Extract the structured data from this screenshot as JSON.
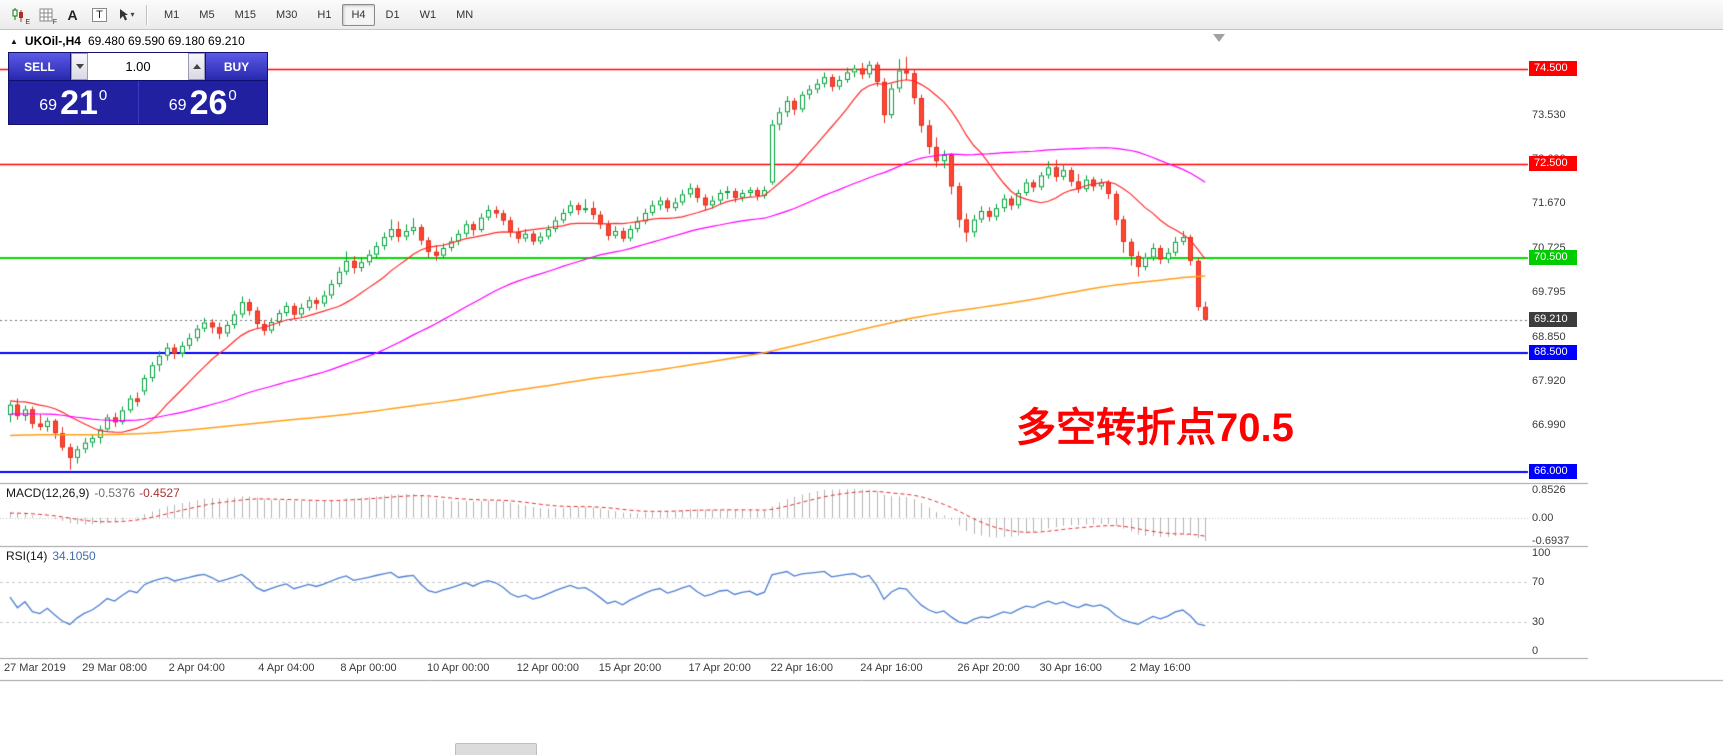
{
  "toolbar": {
    "icons": [
      {
        "name": "candle-chart-e-icon",
        "type": "candles",
        "badge": "E"
      },
      {
        "name": "grid-f-icon",
        "type": "grid",
        "badge": "F"
      },
      {
        "name": "label-a-icon",
        "type": "letter",
        "glyph": "A"
      },
      {
        "name": "text-t-icon",
        "type": "boxed",
        "glyph": "T"
      },
      {
        "name": "cursor-dropdown-icon",
        "type": "cursor"
      }
    ],
    "timeframes": {
      "items": [
        "M1",
        "M5",
        "M15",
        "M30",
        "H1",
        "H4",
        "D1",
        "W1",
        "MN"
      ],
      "active": "H4"
    }
  },
  "chart": {
    "title": {
      "collapse_glyph": "▲",
      "symbol": "UKOil-,H4",
      "ohlc": "69.480 69.590 69.180 69.210"
    },
    "price_scale": {
      "labels": [
        {
          "value": 73.53,
          "text": "73.530"
        },
        {
          "value": 72.6,
          "text": "72.600"
        },
        {
          "value": 71.67,
          "text": "71.670"
        },
        {
          "value": 70.725,
          "text": "70.725"
        },
        {
          "value": 69.795,
          "text": "69.795"
        },
        {
          "value": 68.85,
          "text": "68.850"
        },
        {
          "value": 67.92,
          "text": "67.920"
        },
        {
          "value": 66.99,
          "text": "66.990"
        }
      ],
      "badges": [
        {
          "value": 74.5,
          "text": "74.500",
          "color": "#FF0000"
        },
        {
          "value": 72.5,
          "text": "72.500",
          "color": "#FF0000"
        },
        {
          "value": 70.5,
          "text": "70.500",
          "color": "#00CC00"
        },
        {
          "value": 69.21,
          "text": "69.210",
          "color": "#3C3C3C"
        },
        {
          "value": 68.5,
          "text": "68.500",
          "color": "#0000FF"
        },
        {
          "value": 66.0,
          "text": "66.000",
          "color": "#0000FF"
        }
      ]
    }
  },
  "trade_panel": {
    "sell_label": "SELL",
    "buy_label": "BUY",
    "volume": "1.00",
    "sell_price": {
      "big": "69",
      "pips": "21",
      "sup": "0"
    },
    "buy_price": {
      "big": "69",
      "pips": "26",
      "sup": "0"
    }
  },
  "annotation": {
    "text": "多空转折点70.5",
    "color": "#FF0000"
  },
  "indicators": {
    "macd": {
      "label": "MACD(12,26,9)",
      "value_main": "-0.5376",
      "value_signal": "-0.4527",
      "scale": [
        "0.8526",
        "0.00",
        "-0.6937"
      ]
    },
    "rsi": {
      "label": "RSI(14)",
      "value": "34.1050",
      "scale": [
        "100",
        "70",
        "30",
        "0"
      ]
    }
  },
  "chart_data": {
    "type": "candlestick",
    "symbol": "UKOil-",
    "timeframe": "H4",
    "y_range": [
      65.77,
      75.25
    ],
    "current_price": 69.21,
    "last_bar": {
      "open": 69.48,
      "high": 69.59,
      "low": 69.18,
      "close": 69.21
    },
    "colors": {
      "bull_border": "#00A33B",
      "bull_fill": "#FFFFFF",
      "bear_border": "#E03222",
      "bear_fill": "#FF4632"
    },
    "horizontal_lines": [
      {
        "price": 74.5,
        "color": "#FF0000",
        "width": 1.4
      },
      {
        "price": 72.5,
        "color": "#FF0000",
        "width": 1.4
      },
      {
        "price": 70.5,
        "color": "#00DC00",
        "width": 2
      },
      {
        "price": 68.5,
        "color": "#0000FF",
        "width": 2
      },
      {
        "price": 66.0,
        "color": "#0000FF",
        "width": 2
      }
    ],
    "moving_averages": [
      {
        "period": 13,
        "color": "#FF2A2A",
        "width": 1.2
      },
      {
        "period": 50,
        "color": "#FF00FF",
        "width": 1.2
      },
      {
        "period": 200,
        "color": "#FFA018",
        "width": 1.5
      }
    ],
    "indicators": {
      "macd": {
        "fast": 12,
        "slow": 26,
        "signal": 9,
        "main_value": -0.5376,
        "signal_value": -0.4527
      },
      "rsi": {
        "period": 14,
        "value": 34.105,
        "levels": [
          70,
          30
        ]
      }
    },
    "x_axis": {
      "labels": [
        {
          "bar": 0,
          "text": "27 Mar 2019"
        },
        {
          "bar": 14,
          "text": "29 Mar 08:00"
        },
        {
          "bar": 25,
          "text": "2 Apr 04:00"
        },
        {
          "bar": 37,
          "text": "4 Apr 04:00"
        },
        {
          "bar": 48,
          "text": "8 Apr 00:00"
        },
        {
          "bar": 60,
          "text": "10 Apr 00:00"
        },
        {
          "bar": 72,
          "text": "12 Apr 00:00"
        },
        {
          "bar": 83,
          "text": "15 Apr 20:00"
        },
        {
          "bar": 95,
          "text": "17 Apr 20:00"
        },
        {
          "bar": 106,
          "text": "22 Apr 16:00"
        },
        {
          "bar": 118,
          "text": "24 Apr 16:00"
        },
        {
          "bar": 131,
          "text": "26 Apr 20:00"
        },
        {
          "bar": 142,
          "text": "30 Apr 16:00"
        },
        {
          "bar": 154,
          "text": "2 May 16:00"
        }
      ]
    },
    "candles_ohlc": [
      [
        67.2,
        67.48,
        67.05,
        67.42
      ],
      [
        67.42,
        67.55,
        67.1,
        67.18
      ],
      [
        67.18,
        67.4,
        67.08,
        67.32
      ],
      [
        67.32,
        67.38,
        66.92,
        67.02
      ],
      [
        67.02,
        67.22,
        66.88,
        66.95
      ],
      [
        66.95,
        67.15,
        66.85,
        67.08
      ],
      [
        67.08,
        67.12,
        66.7,
        66.82
      ],
      [
        66.82,
        66.95,
        66.45,
        66.52
      ],
      [
        66.52,
        66.6,
        66.05,
        66.3
      ],
      [
        66.3,
        66.55,
        66.18,
        66.48
      ],
      [
        66.48,
        66.72,
        66.4,
        66.62
      ],
      [
        66.62,
        66.8,
        66.52,
        66.72
      ],
      [
        66.72,
        66.98,
        66.6,
        66.9
      ],
      [
        66.9,
        67.22,
        66.85,
        67.15
      ],
      [
        67.15,
        67.25,
        66.95,
        67.05
      ],
      [
        67.05,
        67.38,
        67.0,
        67.3
      ],
      [
        67.3,
        67.62,
        67.25,
        67.55
      ],
      [
        67.55,
        67.68,
        67.38,
        67.48
      ],
      [
        67.7,
        68.05,
        67.62,
        67.98
      ],
      [
        67.98,
        68.32,
        67.9,
        68.25
      ],
      [
        68.25,
        68.55,
        68.12,
        68.45
      ],
      [
        68.45,
        68.72,
        68.35,
        68.62
      ],
      [
        68.62,
        68.7,
        68.38,
        68.5
      ],
      [
        68.5,
        68.75,
        68.42,
        68.66
      ],
      [
        68.66,
        68.92,
        68.58,
        68.82
      ],
      [
        68.82,
        69.1,
        68.75,
        69.02
      ],
      [
        69.02,
        69.25,
        68.95,
        69.15
      ],
      [
        69.15,
        69.22,
        68.92,
        69.05
      ],
      [
        69.05,
        69.15,
        68.8,
        68.92
      ],
      [
        68.92,
        69.18,
        68.85,
        69.1
      ],
      [
        69.1,
        69.4,
        69.02,
        69.32
      ],
      [
        69.32,
        69.7,
        69.25,
        69.58
      ],
      [
        69.58,
        69.65,
        69.3,
        69.4
      ],
      [
        69.4,
        69.48,
        69.02,
        69.12
      ],
      [
        69.12,
        69.2,
        68.88,
        68.98
      ],
      [
        68.98,
        69.25,
        68.92,
        69.16
      ],
      [
        69.16,
        69.42,
        69.08,
        69.35
      ],
      [
        69.35,
        69.58,
        69.28,
        69.5
      ],
      [
        69.5,
        69.56,
        69.22,
        69.32
      ],
      [
        69.32,
        69.55,
        69.25,
        69.46
      ],
      [
        69.46,
        69.7,
        69.4,
        69.62
      ],
      [
        69.62,
        69.68,
        69.42,
        69.55
      ],
      [
        69.55,
        69.82,
        69.48,
        69.72
      ],
      [
        69.72,
        70.05,
        69.65,
        69.96
      ],
      [
        69.96,
        70.32,
        69.9,
        70.22
      ],
      [
        70.22,
        70.65,
        70.15,
        70.45
      ],
      [
        70.45,
        70.55,
        70.18,
        70.3
      ],
      [
        70.3,
        70.52,
        70.22,
        70.42
      ],
      [
        70.42,
        70.68,
        70.35,
        70.58
      ],
      [
        70.58,
        70.85,
        70.5,
        70.76
      ],
      [
        70.76,
        71.05,
        70.68,
        70.95
      ],
      [
        70.95,
        71.32,
        70.88,
        71.12
      ],
      [
        71.12,
        71.28,
        70.85,
        70.96
      ],
      [
        70.96,
        71.22,
        70.88,
        71.08
      ],
      [
        71.08,
        71.35,
        71.0,
        71.16
      ],
      [
        71.16,
        71.22,
        70.78,
        70.88
      ],
      [
        70.88,
        70.95,
        70.52,
        70.64
      ],
      [
        70.64,
        70.78,
        70.45,
        70.56
      ],
      [
        70.56,
        70.82,
        70.5,
        70.72
      ],
      [
        70.72,
        70.95,
        70.65,
        70.86
      ],
      [
        70.86,
        71.1,
        70.78,
        71.02
      ],
      [
        71.02,
        71.3,
        70.95,
        71.22
      ],
      [
        71.22,
        71.28,
        70.98,
        71.1
      ],
      [
        71.1,
        71.45,
        71.05,
        71.36
      ],
      [
        71.36,
        71.62,
        71.3,
        71.52
      ],
      [
        71.52,
        71.6,
        71.35,
        71.45
      ],
      [
        71.45,
        71.52,
        71.2,
        71.3
      ],
      [
        71.3,
        71.38,
        70.95,
        71.06
      ],
      [
        71.06,
        71.15,
        70.82,
        70.92
      ],
      [
        70.92,
        71.12,
        70.85,
        71.02
      ],
      [
        71.02,
        71.08,
        70.78,
        70.86
      ],
      [
        70.86,
        71.05,
        70.8,
        70.96
      ],
      [
        70.96,
        71.2,
        70.9,
        71.12
      ],
      [
        71.12,
        71.38,
        71.05,
        71.3
      ],
      [
        71.3,
        71.55,
        71.24,
        71.46
      ],
      [
        71.46,
        71.72,
        71.4,
        71.62
      ],
      [
        71.62,
        71.68,
        71.42,
        71.52
      ],
      [
        71.52,
        71.75,
        71.46,
        71.56
      ],
      [
        71.56,
        71.7,
        71.32,
        71.42
      ],
      [
        71.42,
        71.5,
        71.12,
        71.22
      ],
      [
        71.22,
        71.3,
        70.88,
        70.98
      ],
      [
        70.98,
        71.18,
        70.92,
        71.08
      ],
      [
        71.08,
        71.15,
        70.85,
        70.92
      ],
      [
        70.92,
        71.2,
        70.86,
        71.12
      ],
      [
        71.12,
        71.38,
        71.05,
        71.28
      ],
      [
        71.28,
        71.55,
        71.22,
        71.46
      ],
      [
        71.46,
        71.72,
        71.4,
        71.62
      ],
      [
        71.62,
        71.8,
        71.52,
        71.72
      ],
      [
        71.72,
        71.78,
        71.48,
        71.56
      ],
      [
        71.56,
        71.78,
        71.5,
        71.68
      ],
      [
        71.68,
        71.95,
        71.62,
        71.85
      ],
      [
        71.85,
        72.08,
        71.78,
        71.98
      ],
      [
        71.98,
        72.05,
        71.68,
        71.78
      ],
      [
        71.78,
        71.85,
        71.52,
        71.62
      ],
      [
        71.62,
        71.82,
        71.55,
        71.72
      ],
      [
        71.72,
        71.95,
        71.65,
        71.88
      ],
      [
        71.88,
        72.02,
        71.75,
        71.92
      ],
      [
        71.92,
        71.98,
        71.68,
        71.78
      ],
      [
        71.78,
        71.95,
        71.7,
        71.88
      ],
      [
        71.88,
        72.0,
        71.8,
        71.94
      ],
      [
        71.94,
        72.0,
        71.72,
        71.82
      ],
      [
        71.82,
        72.02,
        71.76,
        71.94
      ],
      [
        72.1,
        73.42,
        72.05,
        73.32
      ],
      [
        73.32,
        73.68,
        73.2,
        73.58
      ],
      [
        73.58,
        73.92,
        73.48,
        73.82
      ],
      [
        73.82,
        73.88,
        73.52,
        73.64
      ],
      [
        73.64,
        74.02,
        73.58,
        73.95
      ],
      [
        73.95,
        74.15,
        73.85,
        74.06
      ],
      [
        74.06,
        74.28,
        73.98,
        74.18
      ],
      [
        74.18,
        74.42,
        74.1,
        74.32
      ],
      [
        74.32,
        74.38,
        74.02,
        74.12
      ],
      [
        74.12,
        74.35,
        74.05,
        74.26
      ],
      [
        74.26,
        74.52,
        74.2,
        74.42
      ],
      [
        74.42,
        74.58,
        74.32,
        74.5
      ],
      [
        74.5,
        74.62,
        74.28,
        74.38
      ],
      [
        74.38,
        74.66,
        74.3,
        74.58
      ],
      [
        74.58,
        74.64,
        74.12,
        74.22
      ],
      [
        74.22,
        74.3,
        73.35,
        73.52
      ],
      [
        73.52,
        74.18,
        73.45,
        74.08
      ],
      [
        74.08,
        74.7,
        74.0,
        74.46
      ],
      [
        74.46,
        74.75,
        74.25,
        74.4
      ],
      [
        74.4,
        74.48,
        73.75,
        73.88
      ],
      [
        73.88,
        73.95,
        73.15,
        73.3
      ],
      [
        73.3,
        73.42,
        72.7,
        72.85
      ],
      [
        72.85,
        73.05,
        72.42,
        72.55
      ],
      [
        72.55,
        72.78,
        72.4,
        72.68
      ],
      [
        72.68,
        72.72,
        71.85,
        72.02
      ],
      [
        72.02,
        72.1,
        71.15,
        71.32
      ],
      [
        71.32,
        71.45,
        70.85,
        71.05
      ],
      [
        71.05,
        71.42,
        70.95,
        71.32
      ],
      [
        71.32,
        71.6,
        71.25,
        71.5
      ],
      [
        71.5,
        71.58,
        71.28,
        71.38
      ],
      [
        71.38,
        71.65,
        71.3,
        71.56
      ],
      [
        71.56,
        71.85,
        71.48,
        71.76
      ],
      [
        71.76,
        71.82,
        71.52,
        71.62
      ],
      [
        71.62,
        71.95,
        71.55,
        71.88
      ],
      [
        71.88,
        72.18,
        71.82,
        72.1
      ],
      [
        72.1,
        72.16,
        71.9,
        72.0
      ],
      [
        72.0,
        72.32,
        71.94,
        72.25
      ],
      [
        72.25,
        72.55,
        72.18,
        72.42
      ],
      [
        72.42,
        72.58,
        72.12,
        72.22
      ],
      [
        72.22,
        72.48,
        72.15,
        72.36
      ],
      [
        72.36,
        72.42,
        72.02,
        72.12
      ],
      [
        72.12,
        72.28,
        71.88,
        71.96
      ],
      [
        71.96,
        72.25,
        71.9,
        72.16
      ],
      [
        72.16,
        72.22,
        71.92,
        72.02
      ],
      [
        72.02,
        72.18,
        71.95,
        72.1
      ],
      [
        72.1,
        72.15,
        71.75,
        71.86
      ],
      [
        71.86,
        71.92,
        71.2,
        71.32
      ],
      [
        71.32,
        71.4,
        70.62,
        70.85
      ],
      [
        70.85,
        70.92,
        70.35,
        70.55
      ],
      [
        70.55,
        70.65,
        70.12,
        70.32
      ],
      [
        70.32,
        70.62,
        70.25,
        70.52
      ],
      [
        70.52,
        70.82,
        70.45,
        70.72
      ],
      [
        70.72,
        70.78,
        70.38,
        70.48
      ],
      [
        70.48,
        70.72,
        70.4,
        70.62
      ],
      [
        70.62,
        70.95,
        70.55,
        70.85
      ],
      [
        70.85,
        71.08,
        70.78,
        70.95
      ],
      [
        70.95,
        71.0,
        70.35,
        70.45
      ],
      [
        70.45,
        70.52,
        69.4,
        69.48
      ],
      [
        69.48,
        69.59,
        69.18,
        69.21
      ]
    ]
  }
}
